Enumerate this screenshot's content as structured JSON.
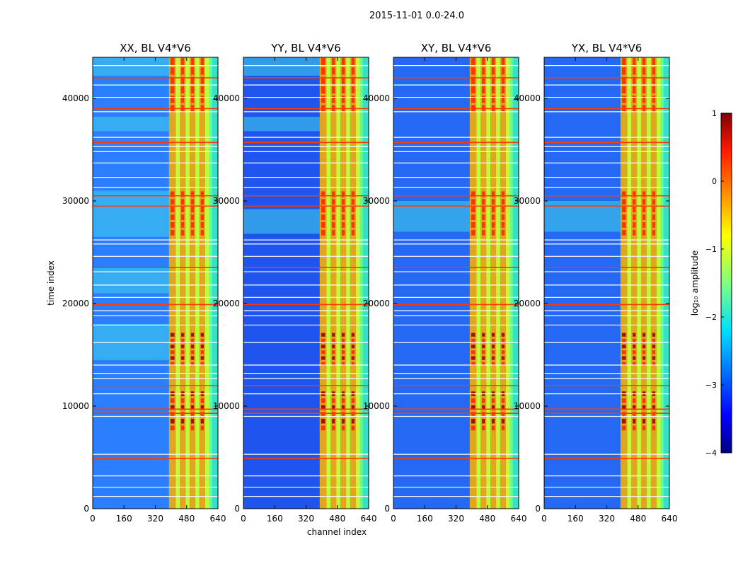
{
  "figure": {
    "suptitle": "2015-11-01 0.0-24.0",
    "ylabel": "time index",
    "xlabel": "channel index"
  },
  "chart_data": {
    "type": "heatmap",
    "x_ticks": [
      "0",
      "160",
      "320",
      "480",
      "640"
    ],
    "x_tick_values": [
      0,
      160,
      320,
      480,
      640
    ],
    "y_ticks": [
      "0",
      "10000",
      "20000",
      "30000",
      "40000"
    ],
    "y_tick_values": [
      0,
      10000,
      20000,
      30000,
      40000
    ],
    "xlim": [
      0,
      640
    ],
    "ylim": [
      0,
      44000
    ],
    "panels": [
      {
        "title": "XX, BL V4*V6",
        "background": "#2b7fff",
        "ubands": [
          [
            36800,
            38200
          ],
          [
            42200,
            44000
          ],
          [
            21000,
            23500
          ],
          [
            14500,
            18000
          ],
          [
            26500,
            31000
          ]
        ]
      },
      {
        "title": "YY, BL V4*V6",
        "background": "#1f55ee",
        "ubands": [
          [
            36800,
            38200
          ],
          [
            42200,
            44000
          ],
          [
            26800,
            29200
          ]
        ]
      },
      {
        "title": "XY, BL V4*V6",
        "background": "#2468f4",
        "ubands": [
          [
            27000,
            30000
          ]
        ]
      },
      {
        "title": "YX, BL V4*V6",
        "background": "#2468f4",
        "ubands": [
          [
            27000,
            30000
          ]
        ]
      }
    ],
    "red_rows": [
      4900,
      9300,
      9700,
      12000,
      19900,
      23500,
      29500,
      30500,
      35700,
      39000,
      42000
    ],
    "white_rows": [
      1200,
      2100,
      3200,
      5300,
      9000,
      11200,
      12700,
      13200,
      14000,
      16200,
      17900,
      18800,
      19300,
      20600,
      21800,
      23100,
      24600,
      25800,
      26200,
      31300,
      32300,
      33700,
      34800,
      35300,
      36200,
      38700,
      40100,
      41300,
      43200
    ],
    "band": {
      "x_start": 390,
      "x_end": 640
    },
    "band_columns": [
      {
        "x0": 390,
        "x1": 425,
        "level": "orange"
      },
      {
        "x0": 425,
        "x1": 445,
        "level": "yellow"
      },
      {
        "x0": 445,
        "x1": 475,
        "level": "orange"
      },
      {
        "x0": 475,
        "x1": 495,
        "level": "yellow"
      },
      {
        "x0": 495,
        "x1": 525,
        "level": "orange"
      },
      {
        "x0": 525,
        "x1": 545,
        "level": "yellow"
      },
      {
        "x0": 545,
        "x1": 575,
        "level": "orange"
      },
      {
        "x0": 575,
        "x1": 595,
        "level": "yellow"
      },
      {
        "x0": 595,
        "x1": 610,
        "level": "green"
      }
    ],
    "hot_band_ranges": [
      [
        7500,
        11500
      ],
      [
        13800,
        17200
      ],
      [
        26500,
        31000
      ],
      [
        38500,
        44000
      ]
    ],
    "colorbar": {
      "label": "log₁₀ amplitude",
      "ticks": [
        "1",
        "0",
        "−1",
        "−2",
        "−3",
        "−4"
      ],
      "tick_values": [
        1,
        0,
        -1,
        -2,
        -3,
        -4
      ],
      "range": [
        -4,
        1
      ],
      "colormap": "jet"
    }
  }
}
